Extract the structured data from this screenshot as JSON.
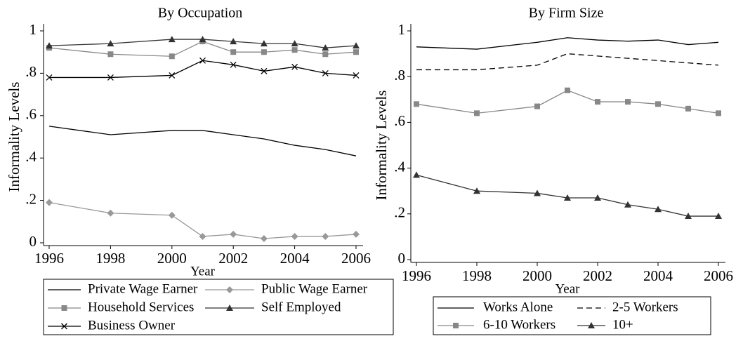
{
  "chart_data": [
    {
      "type": "line",
      "title": "By Occupation",
      "xlabel": "Year",
      "ylabel": "Informality Levels",
      "x": [
        1996,
        1998,
        2000,
        2001,
        2002,
        2003,
        2004,
        2005,
        2006
      ],
      "xlim": [
        1996,
        2006
      ],
      "xticks": [
        1996,
        1998,
        2000,
        2002,
        2004,
        2006
      ],
      "ylim": [
        0,
        1
      ],
      "yticks": [
        0,
        {
          "value": 0.2,
          "label": ".2"
        },
        {
          "value": 0.4,
          "label": ".4"
        },
        {
          "value": 0.6,
          "label": ".6"
        },
        {
          "value": 0.8,
          "label": ".8"
        },
        1
      ],
      "series": [
        {
          "name": "Private Wage Earner",
          "color": "#000000",
          "marker": "none",
          "dash": "none",
          "values": [
            0.55,
            0.51,
            0.53,
            0.53,
            0.51,
            0.49,
            0.46,
            0.44,
            0.41
          ]
        },
        {
          "name": "Public Wage Earner",
          "color": "#999999",
          "marker": "diamond",
          "dash": "none",
          "values": [
            0.19,
            0.14,
            0.13,
            0.03,
            0.04,
            0.02,
            0.03,
            0.03,
            0.04
          ]
        },
        {
          "name": "Household Services",
          "color": "#888888",
          "marker": "square",
          "dash": "none",
          "values": [
            0.92,
            0.89,
            0.88,
            0.95,
            0.9,
            0.9,
            0.91,
            0.89,
            0.9
          ]
        },
        {
          "name": "Self Employed",
          "color": "#333333",
          "marker": "triangle",
          "dash": "none",
          "values": [
            0.93,
            0.94,
            0.96,
            0.96,
            0.95,
            0.94,
            0.94,
            0.92,
            0.93
          ]
        },
        {
          "name": "Business Owner",
          "color": "#000000",
          "marker": "x",
          "dash": "none",
          "values": [
            0.78,
            0.78,
            0.79,
            0.86,
            0.84,
            0.81,
            0.83,
            0.8,
            0.79
          ]
        }
      ]
    },
    {
      "type": "line",
      "title": "By Firm Size",
      "xlabel": "Year",
      "ylabel": "Informality Levels",
      "x": [
        1996,
        1998,
        2000,
        2001,
        2002,
        2003,
        2004,
        2005,
        2006
      ],
      "xlim": [
        1996,
        2006
      ],
      "xticks": [
        1996,
        1998,
        2000,
        2002,
        2004,
        2006
      ],
      "ylim": [
        0,
        1
      ],
      "yticks": [
        0,
        {
          "value": 0.2,
          "label": ".2"
        },
        {
          "value": 0.4,
          "label": ".4"
        },
        {
          "value": 0.6,
          "label": ".6"
        },
        {
          "value": 0.8,
          "label": ".8"
        },
        1
      ],
      "series": [
        {
          "name": "Works Alone",
          "color": "#000000",
          "marker": "none",
          "dash": "none",
          "values": [
            0.93,
            0.92,
            0.95,
            0.97,
            0.96,
            0.955,
            0.96,
            0.94,
            0.95
          ]
        },
        {
          "name": "2-5 Workers",
          "color": "#000000",
          "marker": "none",
          "dash": "8 5",
          "values": [
            0.83,
            0.83,
            0.85,
            0.9,
            0.89,
            0.88,
            0.87,
            0.86,
            0.85
          ]
        },
        {
          "name": "6-10 Workers",
          "color": "#888888",
          "marker": "square",
          "dash": "none",
          "values": [
            0.68,
            0.64,
            0.67,
            0.74,
            0.69,
            0.69,
            0.68,
            0.66,
            0.64
          ]
        },
        {
          "name": "10+",
          "color": "#333333",
          "marker": "triangle",
          "dash": "none",
          "values": [
            0.37,
            0.3,
            0.29,
            0.27,
            0.27,
            0.24,
            0.22,
            0.19,
            0.19
          ]
        }
      ]
    }
  ]
}
